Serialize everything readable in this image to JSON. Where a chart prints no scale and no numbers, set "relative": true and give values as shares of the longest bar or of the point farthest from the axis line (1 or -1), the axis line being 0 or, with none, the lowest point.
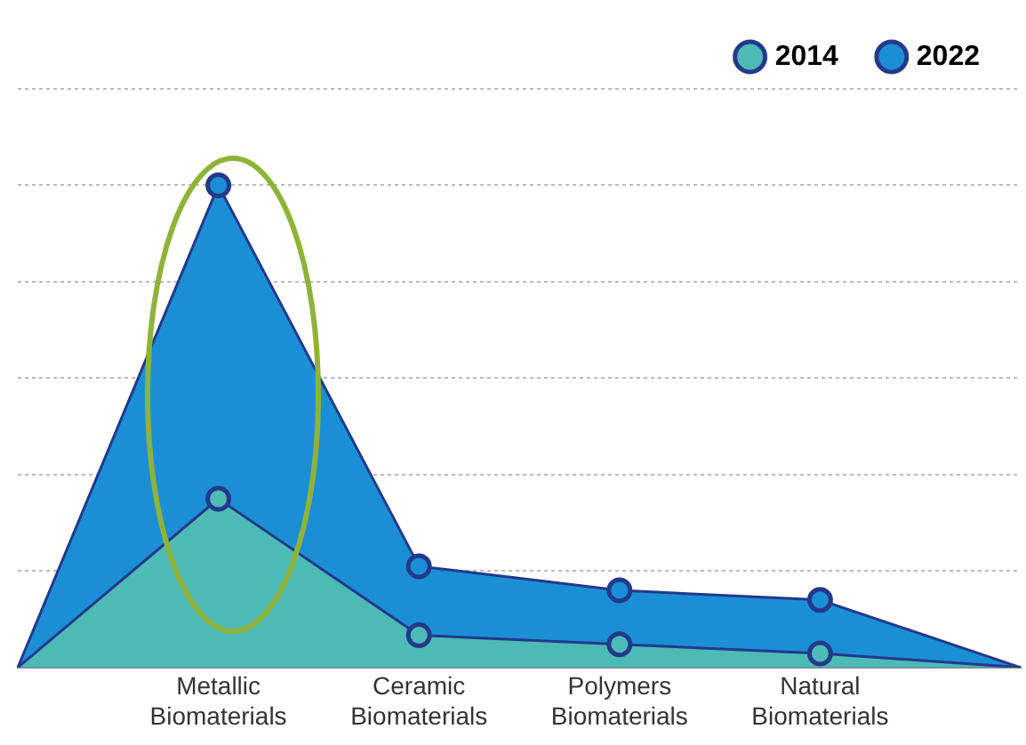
{
  "chart_data": {
    "type": "area",
    "relative": true,
    "categories": [
      null,
      "Metallic Biomaterials",
      "Ceramic Biomaterials",
      "Polymers Biomaterials",
      "Natural Biomaterials",
      null
    ],
    "series": [
      {
        "name": "2014",
        "color": "#4dbab6",
        "values": [
          0,
          0.35,
          0.067,
          0.048,
          0.029,
          0
        ]
      },
      {
        "name": "2022",
        "color": "#1b8fd6",
        "values": [
          0,
          1,
          0.21,
          0.16,
          0.14,
          0
        ]
      }
    ],
    "legend": "top right",
    "grid": "y",
    "marker": "circle",
    "line_style": "solid"
  }
}
